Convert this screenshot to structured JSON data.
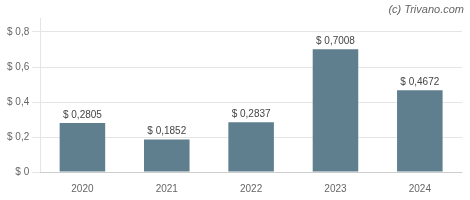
{
  "chart_data": {
    "type": "bar",
    "categories": [
      "2020",
      "2021",
      "2022",
      "2023",
      "2024"
    ],
    "values": [
      0.2805,
      0.1852,
      0.2837,
      0.7008,
      0.4672
    ],
    "value_labels": [
      "$ 0,2805",
      "$ 0,1852",
      "$ 0,2837",
      "$ 0,7008",
      "$ 0,4672"
    ],
    "color": "#5f7f8f",
    "ylim": [
      0,
      0.88
    ],
    "yticks": [
      {
        "value": 0.0,
        "label": "$ 0"
      },
      {
        "value": 0.2,
        "label": "$ 0,2"
      },
      {
        "value": 0.4,
        "label": "$ 0,4"
      },
      {
        "value": 0.6,
        "label": "$ 0,6"
      },
      {
        "value": 0.8,
        "label": "$ 0,8"
      }
    ],
    "grid": true,
    "data_labels": true,
    "annotations": [
      "(c) Trivano.com"
    ]
  }
}
